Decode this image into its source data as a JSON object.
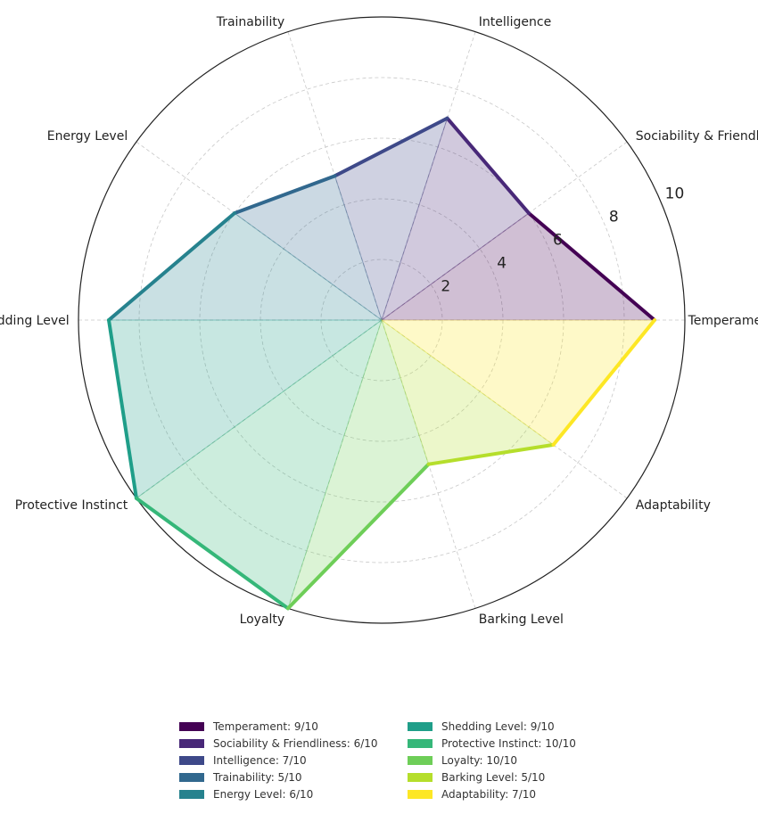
{
  "chart_data": {
    "type": "radar",
    "categories": [
      "Temperament",
      "Sociability & Friendliness",
      "Intelligence",
      "Trainability",
      "Energy Level",
      "Shedding Level",
      "Protective Instinct",
      "Loyalty",
      "Barking Level",
      "Adaptability"
    ],
    "values": [
      9,
      6,
      7,
      5,
      6,
      9,
      10,
      10,
      5,
      7
    ],
    "colors": [
      "#440154",
      "#482878",
      "#3e4989",
      "#31688e",
      "#26828e",
      "#1f9e89",
      "#35b779",
      "#6ece58",
      "#b5de2b",
      "#fde725"
    ],
    "rlim": [
      0,
      10
    ],
    "radial_ticks": [
      "2",
      "4",
      "6",
      "8",
      "10"
    ],
    "grid": true,
    "legend_position": "bottom-center",
    "legend_labels": [
      "Temperament: 9/10",
      "Sociability & Friendliness: 6/10",
      "Intelligence: 7/10",
      "Trainability: 5/10",
      "Energy Level: 6/10",
      "Shedding Level: 9/10",
      "Protective Instinct: 10/10",
      "Loyalty: 10/10",
      "Barking Level: 5/10",
      "Adaptability: 7/10"
    ]
  }
}
